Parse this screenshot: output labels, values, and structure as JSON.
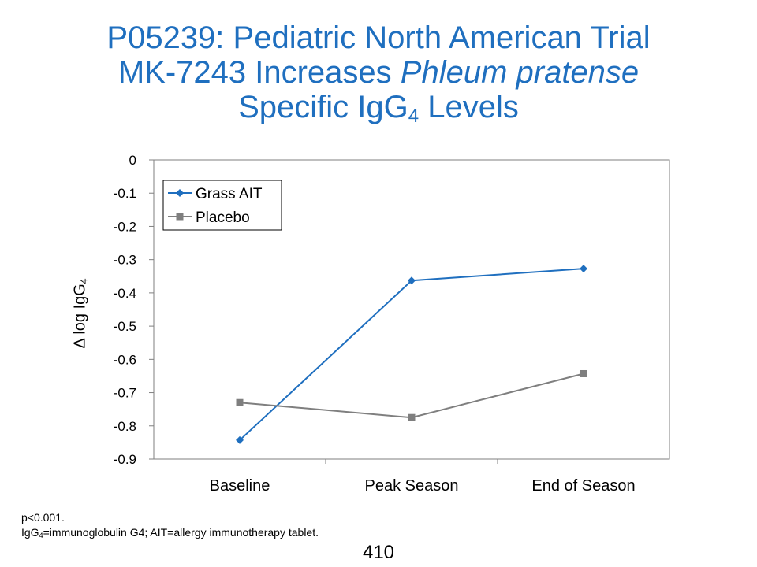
{
  "title": {
    "line1": "P05239: Pediatric North American Trial",
    "line2_pre": "MK-7243 Increases ",
    "line2_italic": "Phleum pratense",
    "line3_pre": "Specific IgG",
    "line3_sub": "4",
    "line3_post": " Levels"
  },
  "ylabel": {
    "pre": "Δ log IgG",
    "sub": "4"
  },
  "footnote": {
    "line1": "p<0.001.",
    "line2_pre": "IgG",
    "line2_sub": "4",
    "line2_post": "=immunoglobulin G4; AIT=allergy immunotherapy tablet."
  },
  "page_number": "410",
  "chart_data": {
    "type": "line",
    "categories": [
      "Baseline",
      "Peak Season",
      "End of Season"
    ],
    "ylim": [
      -0.9,
      0
    ],
    "yticks": [
      0,
      -0.1,
      -0.2,
      -0.3,
      -0.4,
      -0.5,
      -0.6,
      -0.7,
      -0.8,
      -0.9
    ],
    "ytick_labels": [
      "0",
      "-0.1",
      "-0.2",
      "-0.3",
      "-0.4",
      "-0.5",
      "-0.6",
      "-0.7",
      "-0.8",
      "-0.9"
    ],
    "legend_position": "top-left",
    "grid": false,
    "series": [
      {
        "name": "Grass AIT",
        "values": [
          -0.843,
          -0.363,
          -0.327
        ],
        "color": "#1f6fbf",
        "marker": "diamond"
      },
      {
        "name": "Placebo",
        "values": [
          -0.73,
          -0.775,
          -0.643
        ],
        "color": "#7f7f7f",
        "marker": "square"
      }
    ]
  }
}
